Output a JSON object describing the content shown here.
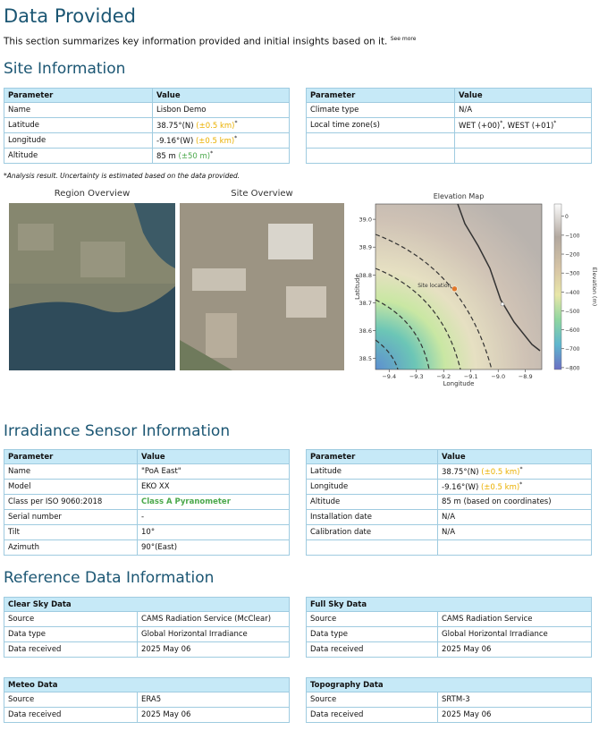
{
  "header": {
    "title": "Data Provided",
    "summary": "This section summarizes key information provided and initial insights based on it.",
    "see_more": "See more"
  },
  "site_information": {
    "heading": "Site Information",
    "left_table": {
      "columns": [
        "Parameter",
        "Value"
      ],
      "rows": [
        [
          "Name",
          "Lisbon Demo"
        ],
        [
          "Latitude",
          [
            {
              "text": "38.75°(N) "
            },
            {
              "text": "(±0.5 km)",
              "color": "#eab000"
            },
            {
              "text": "*",
              "sup": true
            }
          ]
        ],
        [
          "Longitude",
          [
            {
              "text": "-9.16°(W) "
            },
            {
              "text": "(±0.5 km)",
              "color": "#eab000"
            },
            {
              "text": "*",
              "sup": true
            }
          ]
        ],
        [
          "Altitude",
          [
            {
              "text": "85 m "
            },
            {
              "text": "(±50 m)",
              "color": "#4aa84a"
            },
            {
              "text": "*",
              "sup": true
            }
          ]
        ]
      ]
    },
    "right_table": {
      "columns": [
        "Parameter",
        "Value"
      ],
      "rows": [
        [
          "Climate type",
          "N/A"
        ],
        [
          "Local time zone(s)",
          [
            {
              "text": "WET (+00)"
            },
            {
              "text": "*",
              "sup": true
            },
            {
              "text": ", WEST (+01)"
            },
            {
              "text": "*",
              "sup": true
            }
          ]
        ],
        [
          null,
          null
        ],
        [
          null,
          null
        ]
      ]
    },
    "footnote": "*Analysis result. Uncertainty is estimated based on the data provided.",
    "region_overview": "Region Overview",
    "site_overview": "Site Overview"
  },
  "elevation_map": {
    "title": "Elevation Map",
    "xlabel": "Longitude",
    "ylabel": "Latitude",
    "xlim": [
      -9.45,
      -8.84
    ],
    "ylim": [
      38.46,
      39.055
    ],
    "xticks": [
      {
        "value": -9.4,
        "label": "−9.4"
      },
      {
        "value": -9.3,
        "label": "−9.3"
      },
      {
        "value": -9.2,
        "label": "−9.2"
      },
      {
        "value": -9.1,
        "label": "−9.1"
      },
      {
        "value": -9.0,
        "label": "−9.0"
      },
      {
        "value": -8.9,
        "label": "−8.9"
      }
    ],
    "yticks": [
      {
        "value": 38.5,
        "label": "38.5"
      },
      {
        "value": 38.6,
        "label": "38.6"
      },
      {
        "value": 38.7,
        "label": "38.7"
      },
      {
        "value": 38.8,
        "label": "38.8"
      },
      {
        "value": 38.9,
        "label": "38.9"
      },
      {
        "value": 39.0,
        "label": "39.0"
      }
    ],
    "site": {
      "x": -9.16,
      "y": 38.75,
      "label": "Site location"
    },
    "colorbar": {
      "label": "Elevation (m)",
      "lim": [
        -810,
        65
      ],
      "ticks": [
        0,
        {
          "value": -100,
          "label": "−100"
        },
        {
          "value": -200,
          "label": "−200"
        },
        {
          "value": -300,
          "label": "−300"
        },
        {
          "value": -400,
          "label": "−400"
        },
        {
          "value": -500,
          "label": "−500"
        },
        {
          "value": -600,
          "label": "−600"
        },
        {
          "value": -700,
          "label": "−700"
        },
        {
          "value": -800,
          "label": "−800"
        }
      ]
    }
  },
  "irradiance_sensor": {
    "heading": "Irradiance Sensor Information",
    "left_table": {
      "columns": [
        "Parameter",
        "Value"
      ],
      "rows": [
        [
          "Name",
          "\"PoA East\""
        ],
        [
          "Model",
          "EKO XX"
        ],
        [
          "Class per ISO 9060:2018",
          [
            {
              "text": "Class A Pyranometer",
              "color": "#4aa84a",
              "bold": true
            }
          ]
        ],
        [
          "Serial number",
          "-"
        ],
        [
          "Tilt",
          "10°"
        ],
        [
          "Azimuth",
          "90°(East)"
        ]
      ]
    },
    "right_table": {
      "columns": [
        "Parameter",
        "Value"
      ],
      "rows": [
        [
          "Latitude",
          [
            {
              "text": "38.75°(N) "
            },
            {
              "text": "(±0.5 km)",
              "color": "#eab000"
            },
            {
              "text": "*",
              "sup": true
            }
          ]
        ],
        [
          "Longitude",
          [
            {
              "text": "-9.16°(W) "
            },
            {
              "text": "(±0.5 km)",
              "color": "#eab000"
            },
            {
              "text": "*",
              "sup": true
            }
          ]
        ],
        [
          "Altitude",
          "85 m (based on coordinates)"
        ],
        [
          "Installation date",
          "N/A"
        ],
        [
          "Calibration date",
          "N/A"
        ],
        [
          null,
          null
        ]
      ]
    }
  },
  "reference_data": {
    "heading": "Reference Data Information",
    "clear_sky": {
      "title": "Clear Sky Data",
      "rows": [
        [
          "Source",
          "CAMS Radiation Service (McClear)"
        ],
        [
          "Data type",
          "Global Horizontal Irradiance"
        ],
        [
          "Data received",
          "2025 May 06"
        ]
      ]
    },
    "full_sky": {
      "title": "Full Sky Data",
      "rows": [
        [
          "Source",
          "CAMS Radiation Service"
        ],
        [
          "Data type",
          "Global Horizontal Irradiance"
        ],
        [
          "Data received",
          "2025 May 06"
        ]
      ]
    },
    "meteo": {
      "title": "Meteo Data",
      "rows": [
        [
          "Source",
          "ERA5"
        ],
        [
          "Data received",
          "2025 May 06"
        ]
      ]
    },
    "topography": {
      "title": "Topography Data",
      "rows": [
        [
          "Source",
          "SRTM-3"
        ],
        [
          "Data received",
          "2025 May 06"
        ]
      ]
    }
  }
}
